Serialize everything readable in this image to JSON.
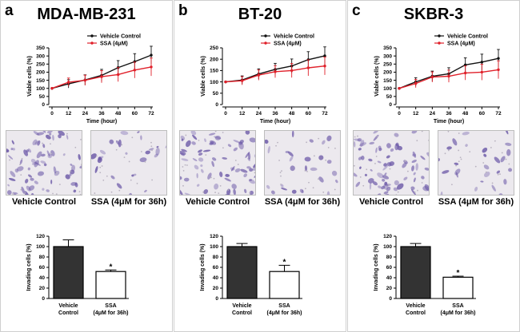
{
  "figure": {
    "panels": [
      {
        "letter": "a",
        "title": "MDA-MB-231",
        "micrographs": [
          {
            "caption": "Vehicle Control",
            "stain_density": "high"
          },
          {
            "caption": "SSA (4μM for 36h)",
            "stain_density": "low"
          }
        ]
      },
      {
        "letter": "b",
        "title": "BT-20",
        "micrographs": [
          {
            "caption": "Vehicle Control",
            "stain_density": "high"
          },
          {
            "caption": "SSA (4μM for 36h)",
            "stain_density": "low"
          }
        ]
      },
      {
        "letter": "c",
        "title": "SKBR-3",
        "micrographs": [
          {
            "caption": "Vehicle Control",
            "stain_density": "high"
          },
          {
            "caption": "SSA (4μM for 36h)",
            "stain_density": "low"
          }
        ]
      }
    ]
  },
  "colors": {
    "vehicle_line": "#111111",
    "ssa_line": "#e0202a",
    "bar_control": "#333333",
    "bar_ssa": "#ffffff",
    "stain": "#6d5aa8"
  },
  "chart_data": [
    {
      "panel": "a",
      "type": "line",
      "xlabel": "Time (hour)",
      "ylabel": "Viable cells (%)",
      "x": [
        0,
        12,
        24,
        36,
        48,
        60,
        72
      ],
      "xticks": [
        "0",
        "12",
        "24",
        "36",
        "48",
        "60",
        "72"
      ],
      "ylim": [
        0,
        350
      ],
      "yticks": [
        "0",
        "50",
        "100",
        "150",
        "200",
        "250",
        "300",
        "350"
      ],
      "series": [
        {
          "name": "Vehicle Control",
          "values": [
            100,
            128,
            152,
            180,
            228,
            265,
            305
          ]
        },
        {
          "name": "SSA (4μM)",
          "values": [
            100,
            138,
            150,
            172,
            185,
            213,
            232
          ]
        }
      ]
    },
    {
      "panel": "b",
      "type": "line",
      "xlabel": "Time (hour)",
      "ylabel": "Viable cells (%)",
      "x": [
        0,
        12,
        24,
        36,
        48,
        60,
        72
      ],
      "xticks": [
        "0",
        "12",
        "24",
        "36",
        "48",
        "60",
        "72"
      ],
      "ylim": [
        0,
        250
      ],
      "yticks": [
        "0",
        "50",
        "100",
        "150",
        "200",
        "250"
      ],
      "series": [
        {
          "name": "Vehicle Control",
          "values": [
            100,
            108,
            135,
            155,
            170,
            198,
            215
          ]
        },
        {
          "name": "SSA (4μM)",
          "values": [
            100,
            105,
            130,
            145,
            150,
            162,
            170
          ]
        }
      ]
    },
    {
      "panel": "c",
      "type": "line",
      "xlabel": "Time (hour)",
      "ylabel": "Viable cells (%)",
      "x": [
        0,
        12,
        24,
        36,
        48,
        60,
        72
      ],
      "xticks": [
        "0",
        "12",
        "24",
        "36",
        "48",
        "60",
        "72"
      ],
      "ylim": [
        0,
        350
      ],
      "yticks": [
        "0",
        "50",
        "100",
        "150",
        "200",
        "250",
        "300",
        "350"
      ],
      "series": [
        {
          "name": "Vehicle Control",
          "values": [
            100,
            140,
            175,
            190,
            245,
            262,
            285
          ]
        },
        {
          "name": "SSA (4μM)",
          "values": [
            100,
            130,
            170,
            175,
            195,
            200,
            215
          ]
        }
      ]
    },
    {
      "panel": "a",
      "type": "bar",
      "ylabel": "Invading cells (%)",
      "categories": [
        [
          "Vehicle",
          "Control"
        ],
        [
          "SSA",
          "(4μM for 36h)"
        ]
      ],
      "values": [
        100,
        52
      ],
      "errors": [
        13,
        3
      ],
      "significance": "*",
      "ylim": [
        0,
        120
      ],
      "yticks": [
        "0",
        "20",
        "40",
        "60",
        "80",
        "100",
        "120"
      ]
    },
    {
      "panel": "b",
      "type": "bar",
      "ylabel": "Invading cells (%)",
      "categories": [
        [
          "Vehicle",
          "Control"
        ],
        [
          "SSA",
          "(4μM for 36h)"
        ]
      ],
      "values": [
        100,
        52
      ],
      "errors": [
        6,
        12
      ],
      "significance": "*",
      "ylim": [
        0,
        120
      ],
      "yticks": [
        "0",
        "20",
        "40",
        "60",
        "80",
        "100",
        "120"
      ]
    },
    {
      "panel": "c",
      "type": "bar",
      "ylabel": "Invading cells (%)",
      "categories": [
        [
          "Vehicle",
          "Control"
        ],
        [
          "SSA",
          "(4μM for 36h)"
        ]
      ],
      "values": [
        100,
        41
      ],
      "errors": [
        6,
        2
      ],
      "significance": "*",
      "ylim": [
        0,
        120
      ],
      "yticks": [
        "0",
        "20",
        "40",
        "60",
        "80",
        "100",
        "120"
      ]
    }
  ]
}
